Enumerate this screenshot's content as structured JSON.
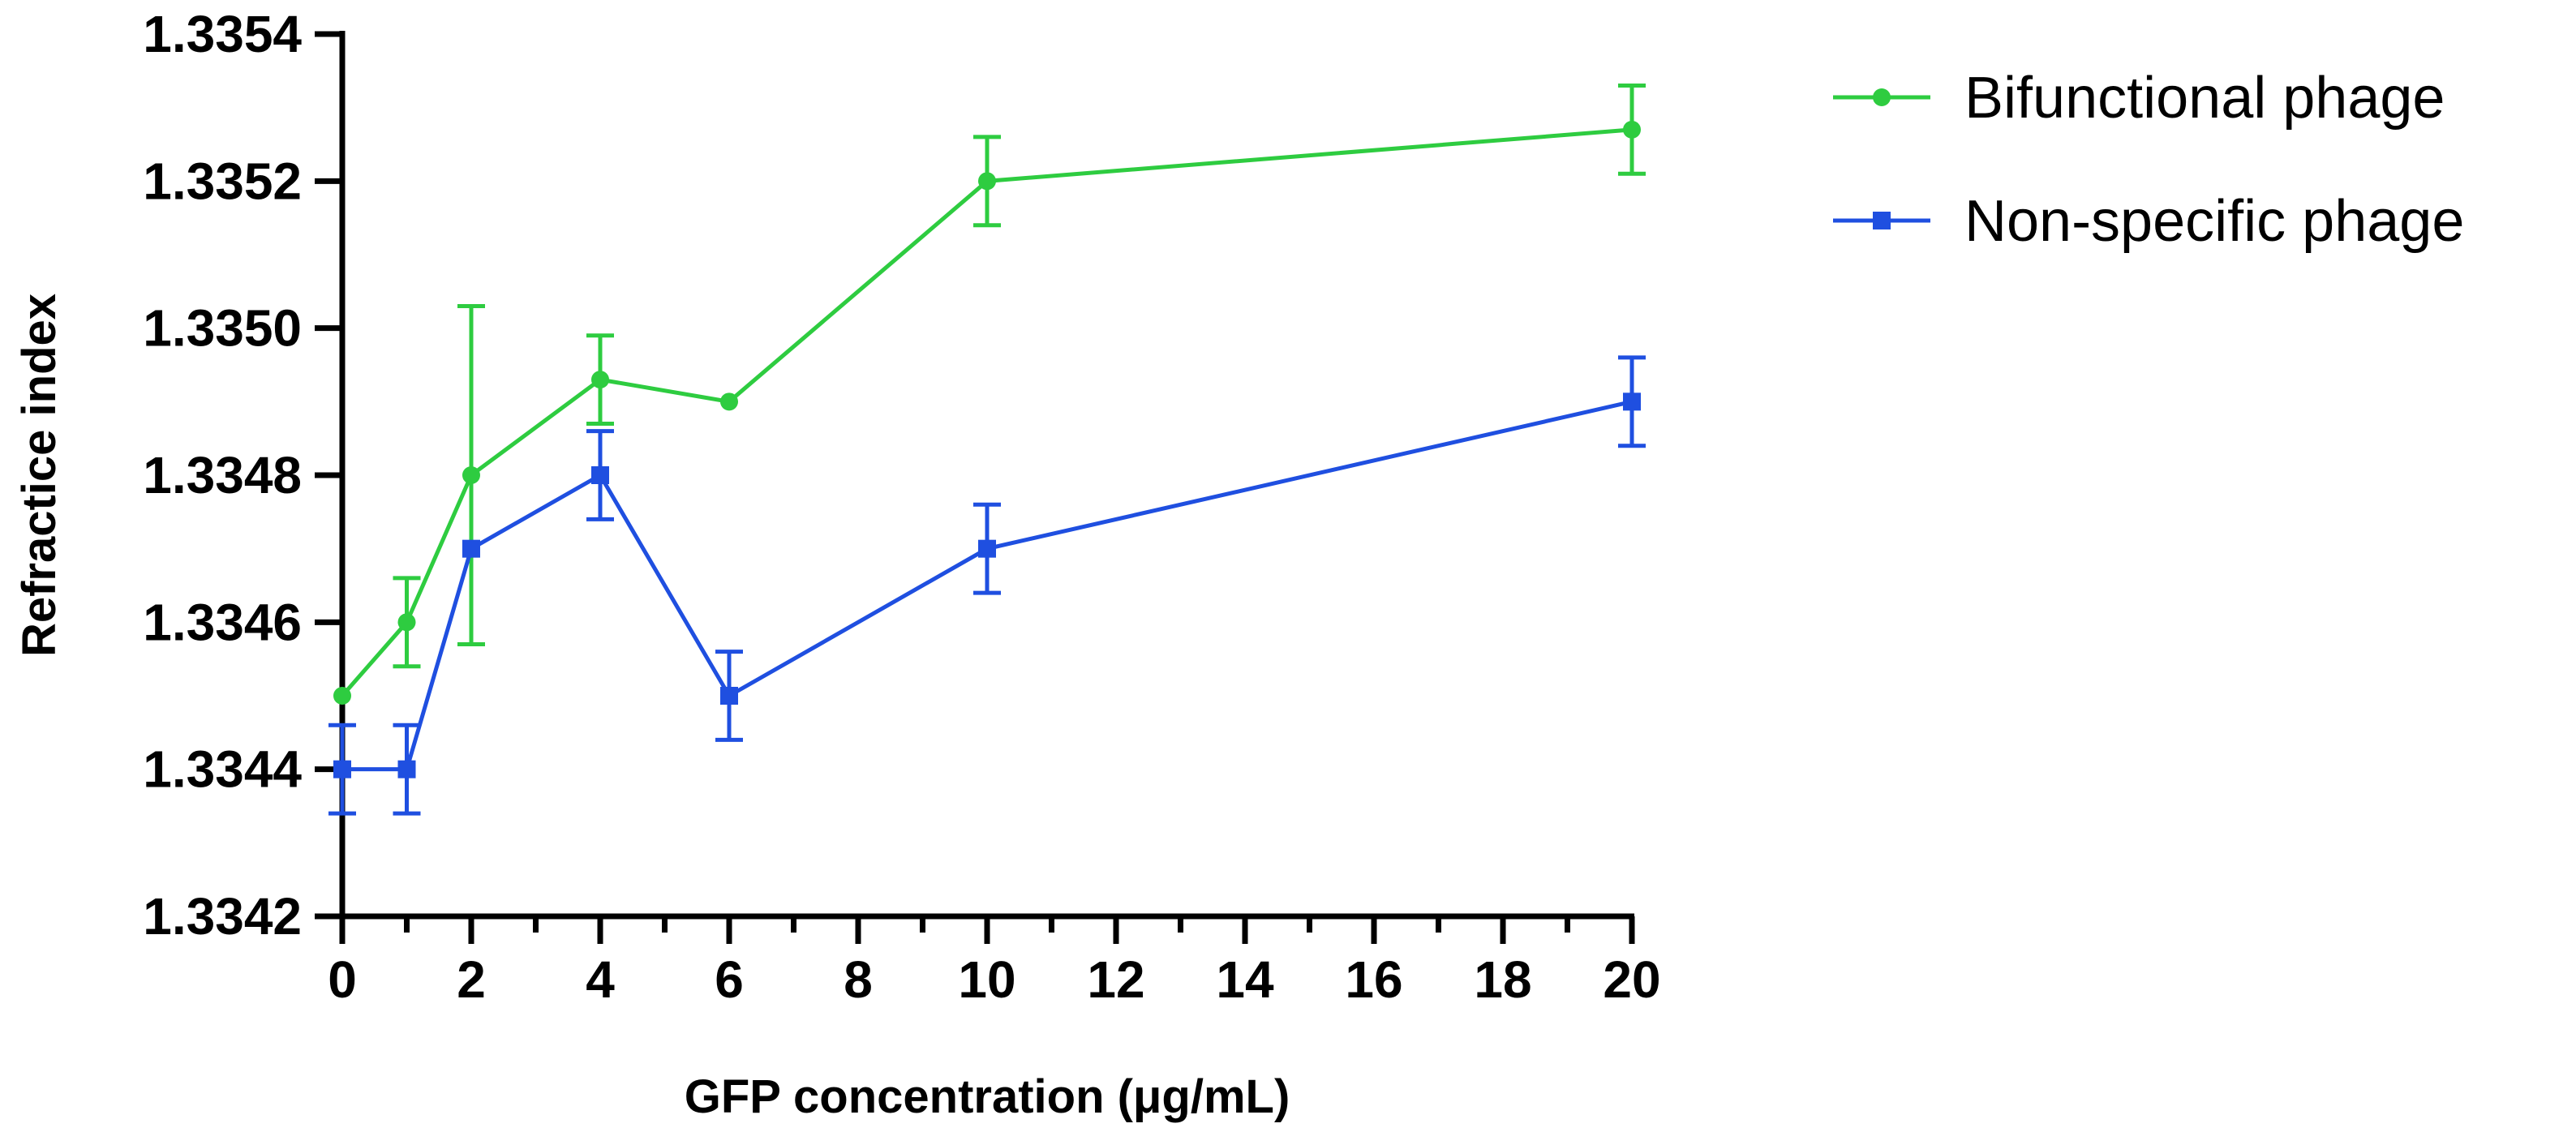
{
  "chart_data": {
    "type": "line",
    "title": "",
    "xlabel": "GFP concentration (μg/mL)",
    "ylabel": "Refractice index",
    "x_tick_labels": [
      "0",
      "2",
      "4",
      "6",
      "8",
      "10",
      "12",
      "14",
      "16",
      "18",
      "20"
    ],
    "y_ticks": [
      1.3342,
      1.3344,
      1.3346,
      1.3348,
      1.335,
      1.3352,
      1.3354
    ],
    "y_tick_labels": [
      "1.3342",
      "1.3344",
      "1.3346",
      "1.3348",
      "1.3350",
      "1.3352",
      "1.3354"
    ],
    "ylim": [
      1.3342,
      1.3354
    ],
    "grid": false,
    "legend_position": "top-right, outside plot",
    "x_note": "Points plotted at categorical positions 0,1,2,4,6,10,20 on an axis labelled 0-20",
    "series": [
      {
        "name": "Bifunctional phage",
        "color": "#2ecc40",
        "marker": "circle",
        "points": [
          {
            "x": 0,
            "y": 1.3345,
            "err": 0
          },
          {
            "x": 1,
            "y": 1.3346,
            "err": 6e-05
          },
          {
            "x": 2,
            "y": 1.3348,
            "err": 0.00023
          },
          {
            "x": 4,
            "y": 1.33493,
            "err": 6e-05
          },
          {
            "x": 6,
            "y": 1.3349,
            "err": 0
          },
          {
            "x": 10,
            "y": 1.3352,
            "err": 6e-05
          },
          {
            "x": 20,
            "y": 1.33527,
            "err": 6e-05
          }
        ]
      },
      {
        "name": "Non-specific phage",
        "color": "#1f4fe0",
        "marker": "square",
        "points": [
          {
            "x": 0,
            "y": 1.3344,
            "err": 6e-05
          },
          {
            "x": 1,
            "y": 1.3344,
            "err": 6e-05
          },
          {
            "x": 2,
            "y": 1.3347,
            "err": 0
          },
          {
            "x": 4,
            "y": 1.3348,
            "err": 6e-05
          },
          {
            "x": 6,
            "y": 1.3345,
            "err": 6e-05
          },
          {
            "x": 10,
            "y": 1.3347,
            "err": 6e-05
          },
          {
            "x": 20,
            "y": 1.3349,
            "err": 6e-05
          }
        ]
      }
    ]
  }
}
